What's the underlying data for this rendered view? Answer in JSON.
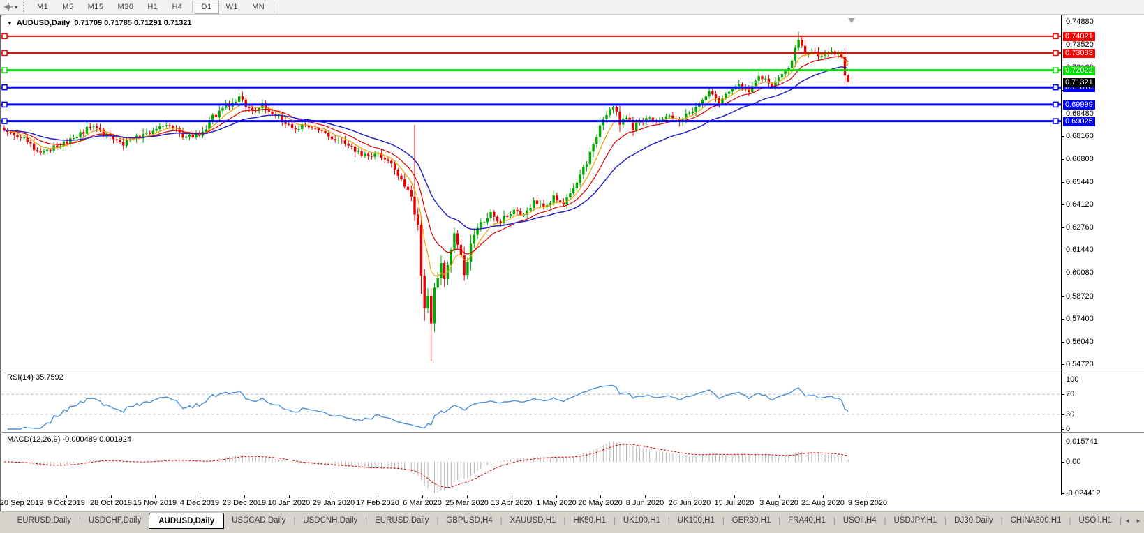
{
  "toolbar": {
    "tool_icon": "crosshair-tool-icon",
    "dropdown_caret": "▾",
    "timeframes": [
      {
        "label": "M1",
        "active": false
      },
      {
        "label": "M5",
        "active": false
      },
      {
        "label": "M15",
        "active": false
      },
      {
        "label": "M30",
        "active": false
      },
      {
        "label": "H1",
        "active": false
      },
      {
        "label": "H4",
        "active": false
      },
      {
        "label": "D1",
        "active": true
      },
      {
        "label": "W1",
        "active": false
      },
      {
        "label": "MN",
        "active": false
      }
    ]
  },
  "chart": {
    "collapse_triangle": "▼",
    "title_symbol": "AUDUSD,Daily",
    "ohlc_text": "0.71709 0.71785 0.71291 0.71321",
    "open": "0.71709",
    "high": "0.71785",
    "low": "0.71291",
    "close": "0.71321"
  },
  "rsi": {
    "name": "RSI(14)",
    "value": "35.7592",
    "period": 14,
    "axis_labels": [
      {
        "v": 100,
        "t": "100"
      },
      {
        "v": 70,
        "t": "70"
      },
      {
        "v": 30,
        "t": "30"
      },
      {
        "v": 0,
        "t": "0"
      }
    ],
    "dashed_levels": [
      70,
      30
    ],
    "line_color": "#4a90d9"
  },
  "macd": {
    "name": "MACD(12,26,9)",
    "value_main": "-0.000489",
    "value_signal": "0.001924",
    "fast": 12,
    "slow": 26,
    "signal": 9,
    "axis_labels": [
      {
        "y": 13,
        "t": "0.015741"
      },
      {
        "y": 42,
        "t": "0.00"
      },
      {
        "y": 87,
        "t": "-0.024412"
      }
    ],
    "histogram_color": "#b4b4b4",
    "signal_color": "#e00000"
  },
  "chart_data": {
    "type": "candlestick",
    "symbol": "AUDUSD",
    "timeframe": "Daily",
    "bars": 256,
    "up_color": "#00a800",
    "down_color": "#e80000",
    "price_range": {
      "top": 0.75249,
      "bottom": 0.5435
    },
    "y_ticks": [
      "0.74880",
      "0.73520",
      "0.72160",
      "0.70840",
      "0.69480",
      "0.68160",
      "0.66800",
      "0.65440",
      "0.64120",
      "0.62760",
      "0.61440",
      "0.60080",
      "0.58720",
      "0.57400",
      "0.56040",
      "0.54720"
    ],
    "x_labels": [
      "20 Sep 2019",
      "9 Oct 2019",
      "28 Oct 2019",
      "15 Nov 2019",
      "4 Dec 2019",
      "23 Dec 2019",
      "10 Jan 2020",
      "29 Jan 2020",
      "17 Feb 2020",
      "6 Mar 2020",
      "25 Mar 2020",
      "13 Apr 2020",
      "1 May 2020",
      "20 May 2020",
      "8 Jun 2020",
      "26 Jun 2020",
      "15 Jul 2020",
      "3 Aug 2020",
      "21 Aug 2020",
      "9 Sep 2020"
    ],
    "levels": [
      {
        "price": 0.74021,
        "label": "0.74021",
        "color": "#ff0000",
        "width": 2
      },
      {
        "price": 0.73033,
        "label": "0.73033",
        "color": "#ff0000",
        "width": 2
      },
      {
        "price": 0.72022,
        "label": "0.72022",
        "color": "#00e000",
        "width": 3
      },
      {
        "price": 0.7101,
        "label": "0.71010",
        "color": "#0000ff",
        "width": 3
      },
      {
        "price": 0.69999,
        "label": "0.69999",
        "color": "#0000ff",
        "width": 3
      },
      {
        "price": 0.69025,
        "label": "0.69025",
        "color": "#0000ff",
        "width": 3
      }
    ],
    "current_price": {
      "value": 0.71321,
      "label": "0.71321",
      "line_color": "#c8c8c8",
      "label_bg": "#000000"
    },
    "moving_averages": [
      {
        "period": 7,
        "color": "#eda000",
        "width": 1.2,
        "name": "fast-ma"
      },
      {
        "period": 15,
        "color": "#e00000",
        "width": 1.2,
        "name": "medium-ma"
      },
      {
        "period": 32,
        "color": "#2424c8",
        "width": 1.5,
        "name": "slow-ma"
      }
    ],
    "price_anchors": [
      [
        0,
        0.6838
      ],
      [
        6,
        0.68
      ],
      [
        11,
        0.6705
      ],
      [
        14,
        0.6745
      ],
      [
        18,
        0.677
      ],
      [
        22,
        0.681
      ],
      [
        26,
        0.6868
      ],
      [
        30,
        0.683
      ],
      [
        35,
        0.6762
      ],
      [
        40,
        0.68
      ],
      [
        44,
        0.684
      ],
      [
        50,
        0.6885
      ],
      [
        55,
        0.68
      ],
      [
        60,
        0.684
      ],
      [
        63,
        0.6925
      ],
      [
        67,
        0.699
      ],
      [
        71,
        0.7035
      ],
      [
        75,
        0.6962
      ],
      [
        78,
        0.7008
      ],
      [
        82,
        0.694
      ],
      [
        88,
        0.6862
      ],
      [
        92,
        0.688
      ],
      [
        96,
        0.683
      ],
      [
        100,
        0.6805
      ],
      [
        104,
        0.676
      ],
      [
        109,
        0.67
      ],
      [
        113,
        0.6718
      ],
      [
        117,
        0.665
      ],
      [
        120,
        0.656
      ],
      [
        123,
        0.6445
      ],
      [
        125,
        0.628
      ],
      [
        126,
        0.5995
      ],
      [
        127,
        0.5785
      ],
      [
        128,
        0.5882
      ],
      [
        129,
        0.5725
      ],
      [
        130,
        0.592
      ],
      [
        132,
        0.6052
      ],
      [
        133,
        0.5985
      ],
      [
        135,
        0.6152
      ],
      [
        136,
        0.6248
      ],
      [
        138,
        0.6105
      ],
      [
        139,
        0.5988
      ],
      [
        141,
        0.618
      ],
      [
        144,
        0.6302
      ],
      [
        147,
        0.636
      ],
      [
        150,
        0.6312
      ],
      [
        154,
        0.6382
      ],
      [
        157,
        0.635
      ],
      [
        160,
        0.6422
      ],
      [
        163,
        0.6392
      ],
      [
        166,
        0.6452
      ],
      [
        169,
        0.6425
      ],
      [
        172,
        0.6522
      ],
      [
        176,
        0.6652
      ],
      [
        179,
        0.6822
      ],
      [
        182,
        0.6952
      ],
      [
        184,
        0.7002
      ],
      [
        186,
        0.6892
      ],
      [
        188,
        0.6932
      ],
      [
        190,
        0.6862
      ],
      [
        194,
        0.6922
      ],
      [
        197,
        0.6882
      ],
      [
        200,
        0.6932
      ],
      [
        203,
        0.6902
      ],
      [
        206,
        0.6932
      ],
      [
        209,
        0.6982
      ],
      [
        213,
        0.7062
      ],
      [
        216,
        0.7012
      ],
      [
        219,
        0.7092
      ],
      [
        222,
        0.7122
      ],
      [
        225,
        0.7082
      ],
      [
        228,
        0.7152
      ],
      [
        232,
        0.7122
      ],
      [
        235,
        0.7182
      ],
      [
        238,
        0.7245
      ],
      [
        240,
        0.7392
      ],
      [
        242,
        0.7285
      ],
      [
        244,
        0.7322
      ],
      [
        246,
        0.7292
      ],
      [
        249,
        0.7312
      ],
      [
        251,
        0.7302
      ],
      [
        253,
        0.7282
      ],
      [
        254,
        0.71709
      ],
      [
        255,
        0.71321
      ]
    ],
    "wick_overrides": {
      "124": {
        "high": 0.688
      },
      "129": {
        "low": 0.5492
      },
      "240": {
        "high": 0.7428
      },
      "255": {
        "low": 0.71291,
        "high": 0.71785
      }
    }
  },
  "tabs": {
    "scroll_left": "◄",
    "scroll_right": "►",
    "items": [
      {
        "label": "EURUSD,Daily",
        "active": false
      },
      {
        "label": "USDCHF,Daily",
        "active": false
      },
      {
        "label": "AUDUSD,Daily",
        "active": true
      },
      {
        "label": "USDCAD,Daily",
        "active": false
      },
      {
        "label": "USDCNH,Daily",
        "active": false
      },
      {
        "label": "EURUSD,Daily",
        "active": false
      },
      {
        "label": "GBPUSD,H4",
        "active": false
      },
      {
        "label": "XAUUSD,H1",
        "active": false
      },
      {
        "label": "HK50,H1",
        "active": false
      },
      {
        "label": "UK100,H1",
        "active": false
      },
      {
        "label": "UK100,H1",
        "active": false
      },
      {
        "label": "GER30,H1",
        "active": false
      },
      {
        "label": "FRA40,H1",
        "active": false
      },
      {
        "label": "USOil,H4",
        "active": false
      },
      {
        "label": "USDJPY,H1",
        "active": false
      },
      {
        "label": "DJ30,Daily",
        "active": false
      },
      {
        "label": "CHINA300,H1",
        "active": false
      },
      {
        "label": "USOil,H1",
        "active": false
      }
    ]
  }
}
